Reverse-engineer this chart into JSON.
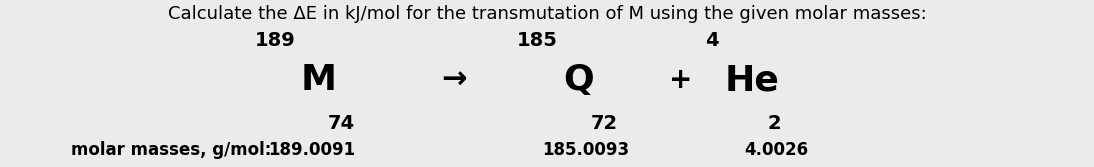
{
  "background_color": "#ebebeb",
  "title_text": "Calculate the ΔE in kJ/mol for the transmutation of M using the given molar masses:",
  "title_fontsize": 13.0,
  "title_fontweight": "normal",
  "reactant_superscript": "189",
  "reactant_letter": "M",
  "reactant_subscript": "74",
  "product1_superscript": "185",
  "product1_letter": "Q",
  "product1_subscript": "72",
  "product2_superscript": "4",
  "product2_letter": "He",
  "product2_subscript": "2",
  "element_fontsize": 26,
  "script_fontsize": 14,
  "plus_fontsize": 20,
  "label_text": "molar masses, g/mol:",
  "label_fontsize": 12.0,
  "mass1_text": "189.0091",
  "mass2_text": "185.0093",
  "mass3_text": "4.0026",
  "mass_fontsize": 12.0,
  "arrow_text": "→",
  "arrow_fontsize": 22
}
